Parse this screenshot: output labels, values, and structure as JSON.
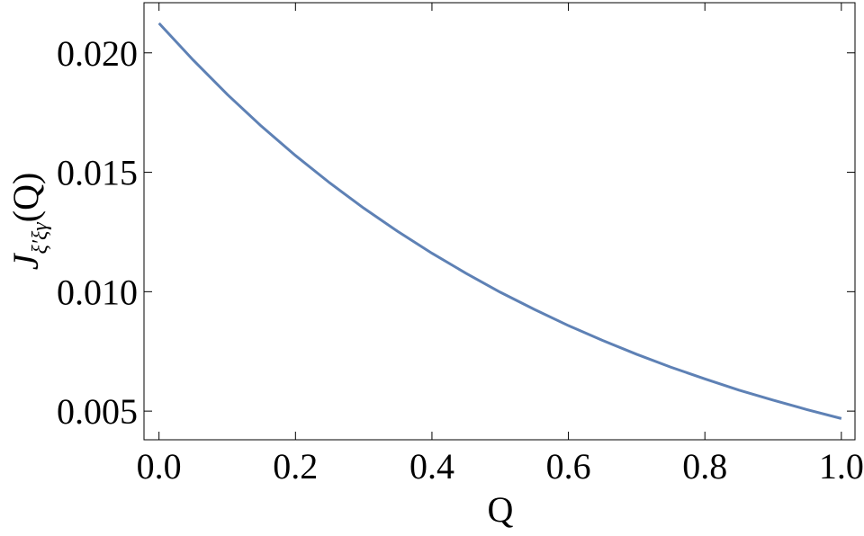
{
  "chart_data": {
    "type": "line",
    "xlabel": "Q",
    "ylabel": {
      "main": "J",
      "sub": "ξ′ξγ",
      "tail": "(Q)"
    },
    "x": [
      0,
      0.05,
      0.1,
      0.15,
      0.2,
      0.25,
      0.3,
      0.35,
      0.4,
      0.45,
      0.5,
      0.55,
      0.6,
      0.65,
      0.7,
      0.75,
      0.8,
      0.85,
      0.9,
      0.95,
      1.0
    ],
    "series": [
      {
        "color": "#5e81b5",
        "values": [
          0.02124,
          0.0197,
          0.01826,
          0.01693,
          0.0157,
          0.01456,
          0.0135,
          0.01252,
          0.01161,
          0.01077,
          0.00998,
          0.00926,
          0.00858,
          0.00796,
          0.00738,
          0.00684,
          0.00635,
          0.00588,
          0.00546,
          0.00506,
          0.00469
        ]
      }
    ],
    "xlim": [
      -0.022,
      1.02
    ],
    "ylim": [
      0.0038,
      0.0221
    ],
    "xticks": [
      {
        "value": 0,
        "label": "0.0"
      },
      {
        "value": 0.2,
        "label": "0.2"
      },
      {
        "value": 0.4,
        "label": "0.4"
      },
      {
        "value": 0.6,
        "label": "0.6"
      },
      {
        "value": 0.8,
        "label": "0.8"
      },
      {
        "value": 1,
        "label": "1.0"
      }
    ],
    "yticks": [
      {
        "value": 0.005,
        "label": "0.005"
      },
      {
        "value": 0.01,
        "label": "0.010"
      },
      {
        "value": 0.015,
        "label": "0.015"
      },
      {
        "value": 0.02,
        "label": "0.020"
      }
    ],
    "grid": false
  }
}
